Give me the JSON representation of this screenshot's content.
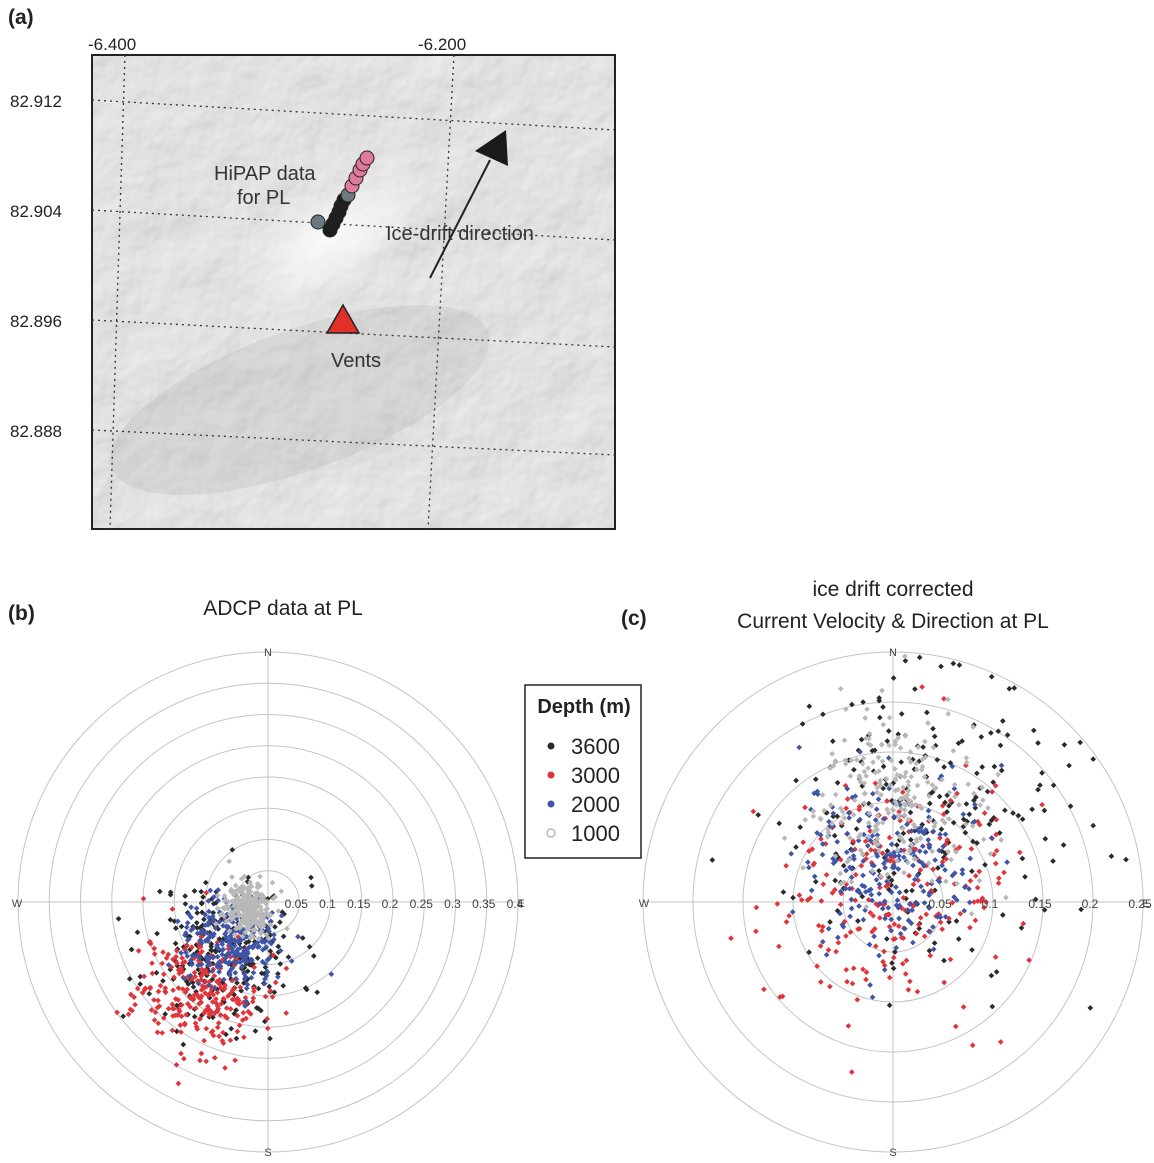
{
  "panel_a": {
    "letter": "(a)",
    "x_ticks": [
      "-6.400",
      "-6.200"
    ],
    "y_ticks": [
      "82.912",
      "82.904",
      "82.896",
      "82.888"
    ],
    "annotations": {
      "hipap_line1": "HiPAP data",
      "hipap_line2": "for PL",
      "ice_drift": "Ice-drift direction",
      "vents": "Vents"
    },
    "colors": {
      "vents": "#e0302a",
      "arrow": "#1a1a1a",
      "hipap_pink": "#e07a9a",
      "hipap_grey": "#6a7a80"
    }
  },
  "panel_b": {
    "letter": "(b)",
    "title": "ADCP data at PL",
    "compass": {
      "n": "N",
      "e": "E",
      "s": "S",
      "w": "W"
    },
    "radial_ticks": [
      "0.05",
      "0.1",
      "0.15",
      "0.2",
      "0.25",
      "0.3",
      "0.35",
      "0.4"
    ]
  },
  "panel_c": {
    "letter": "(c)",
    "title_line1": "ice drift corrected",
    "title_line2": "Current Velocity & Direction at PL",
    "compass": {
      "n": "N",
      "e": "E",
      "s": "S",
      "w": "W"
    },
    "radial_ticks": [
      "0.05",
      "0.1",
      "0.15",
      "0.2",
      "0.25"
    ]
  },
  "legend": {
    "title": "Depth (m)",
    "entries": [
      {
        "label": "3600",
        "color": "#2a2a2a"
      },
      {
        "label": "3000",
        "color": "#e0343a"
      },
      {
        "label": "2000",
        "color": "#3e55a8"
      },
      {
        "label": "1000",
        "color": "#b8b8b8"
      }
    ]
  },
  "chart_data": [
    {
      "type": "scatter",
      "title": "ADCP data at PL",
      "series": [
        {
          "name": "3600",
          "color": "#2a2a2a",
          "cluster": {
            "center_east": -0.07,
            "center_north": -0.08,
            "spread": 0.06
          }
        },
        {
          "name": "3000",
          "color": "#e0343a",
          "cluster": {
            "center_east": -0.11,
            "center_north": -0.14,
            "spread": 0.05
          }
        },
        {
          "name": "2000",
          "color": "#3e55a8",
          "cluster": {
            "center_east": -0.06,
            "center_north": -0.06,
            "spread": 0.035
          }
        },
        {
          "name": "1000",
          "color": "#b8b8b8",
          "cluster": {
            "center_east": -0.03,
            "center_north": -0.01,
            "spread": 0.02
          }
        }
      ],
      "r_max": 0.4
    },
    {
      "type": "scatter",
      "title": "ice drift corrected Current Velocity & Direction at PL",
      "series": [
        {
          "name": "3600",
          "color": "#2a2a2a",
          "cluster": {
            "center_east": 0.02,
            "center_north": 0.09,
            "spread": 0.075
          }
        },
        {
          "name": "3000",
          "color": "#e0343a",
          "cluster": {
            "center_east": -0.0,
            "center_north": 0.01,
            "spread": 0.06
          }
        },
        {
          "name": "2000",
          "color": "#3e55a8",
          "cluster": {
            "center_east": 0.0,
            "center_north": 0.04,
            "spread": 0.045
          }
        },
        {
          "name": "1000",
          "color": "#b8b8b8",
          "cluster": {
            "center_east": 0.0,
            "center_north": 0.1,
            "spread": 0.04
          }
        }
      ],
      "r_max": 0.25
    }
  ]
}
